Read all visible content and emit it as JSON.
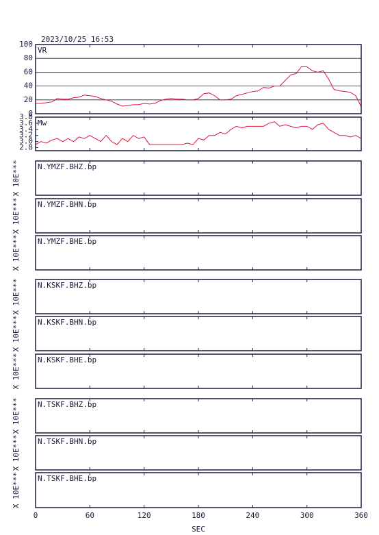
{
  "chart_data": [
    {
      "type": "line",
      "title": "2023/10/25 16:53",
      "label": "VR",
      "x": [
        0,
        6,
        12,
        18,
        24,
        30,
        36,
        42,
        48,
        54,
        60,
        66,
        72,
        78,
        84,
        90,
        96,
        102,
        108,
        114,
        120,
        126,
        132,
        138,
        144,
        150,
        156,
        162,
        168,
        174,
        180,
        186,
        192,
        198,
        204,
        210,
        216,
        222,
        228,
        234,
        240,
        246,
        252,
        258,
        264,
        270,
        276,
        282,
        288,
        294,
        300,
        306,
        312,
        318,
        324,
        330,
        336,
        342,
        348,
        354,
        360
      ],
      "series": [
        {
          "color": "#dc143c",
          "values": [
            15,
            15,
            16,
            17,
            22,
            21,
            21,
            23,
            24,
            27,
            26,
            25,
            22,
            20,
            18,
            14,
            11,
            12,
            13,
            13,
            15,
            14,
            15,
            19,
            21,
            22,
            21,
            21,
            20,
            20,
            22,
            29,
            30,
            26,
            20,
            20,
            21,
            26,
            28,
            30,
            32,
            33,
            38,
            37,
            40,
            40,
            48,
            56,
            58,
            68,
            68,
            62,
            60,
            62,
            50,
            35,
            33,
            32,
            31,
            26,
            10
          ]
        }
      ],
      "ylim": [
        0,
        100
      ],
      "yticks": [
        0,
        20,
        40,
        60,
        80,
        100
      ],
      "grid": true
    },
    {
      "type": "line",
      "label": "Mw",
      "x": [
        0,
        6,
        12,
        18,
        24,
        30,
        36,
        42,
        48,
        54,
        60,
        66,
        72,
        78,
        84,
        90,
        96,
        102,
        108,
        114,
        120,
        126,
        132,
        138,
        144,
        150,
        156,
        162,
        168,
        174,
        180,
        186,
        192,
        198,
        204,
        210,
        216,
        222,
        228,
        234,
        240,
        246,
        252,
        258,
        264,
        270,
        276,
        282,
        288,
        294,
        300,
        306,
        312,
        318,
        324,
        330,
        336,
        342,
        348,
        354,
        360
      ],
      "series": [
        {
          "color": "#dc143c",
          "values": [
            2.9,
            3.0,
            2.95,
            3.05,
            3.1,
            3.0,
            3.1,
            3.0,
            3.15,
            3.1,
            3.2,
            3.1,
            3.0,
            3.2,
            3.0,
            2.9,
            3.1,
            3.0,
            3.2,
            3.1,
            3.15,
            2.9,
            2.9,
            2.9,
            2.9,
            2.9,
            2.9,
            2.9,
            2.95,
            2.9,
            3.1,
            3.05,
            3.2,
            3.2,
            3.3,
            3.25,
            3.4,
            3.5,
            3.45,
            3.5,
            3.5,
            3.5,
            3.5,
            3.6,
            3.65,
            3.5,
            3.55,
            3.5,
            3.45,
            3.5,
            3.5,
            3.4,
            3.55,
            3.6,
            3.4,
            3.3,
            3.2,
            3.2,
            3.15,
            3.2,
            3.1
          ]
        }
      ],
      "ylim": [
        2.7,
        3.8
      ],
      "yticks": [
        2.8,
        {
          "value": 3,
          "label": "3.0"
        },
        3.2,
        3.4,
        3.6,
        3.8
      ],
      "grid": false
    },
    {
      "type": "waveform",
      "label": "N.YMZF.BHZ.bp",
      "ylabel": "X 10E***"
    },
    {
      "type": "waveform",
      "label": "N.YMZF.BHN.bp",
      "ylabel": "X 10E***"
    },
    {
      "type": "waveform",
      "label": "N.YMZF.BHE.bp",
      "ylabel": "X 10E***"
    },
    {
      "type": "waveform",
      "label": "N.KSKF.BHZ.bp",
      "ylabel": "X 10E***"
    },
    {
      "type": "waveform",
      "label": "N.KSKF.BHN.bp",
      "ylabel": "X 10E***"
    },
    {
      "type": "waveform",
      "label": "N.KSKF.BHE.bp",
      "ylabel": "X 10E***"
    },
    {
      "type": "waveform",
      "label": "N.TSKF.BHZ.bp",
      "ylabel": "X 10E***"
    },
    {
      "type": "waveform",
      "label": "N.TSKF.BHN.bp",
      "ylabel": "X 10E***"
    },
    {
      "type": "waveform",
      "label": "N.TSKF.BHE.bp",
      "ylabel": "X 10E***",
      "xlim": [
        0,
        360
      ],
      "xticks": [
        0,
        60,
        120,
        180,
        240,
        300,
        360
      ],
      "xlabel": "SEC"
    }
  ]
}
